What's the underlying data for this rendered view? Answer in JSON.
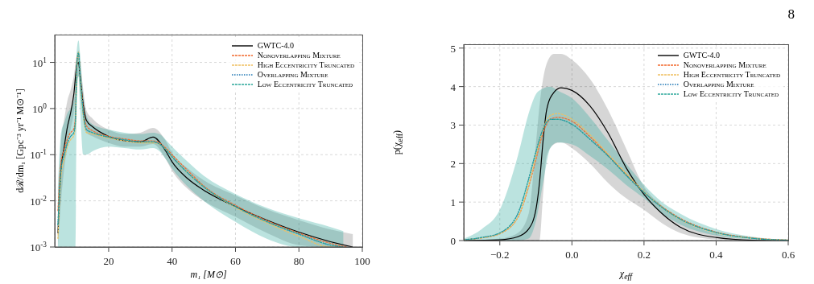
{
  "chart_data": [
    {
      "type": "line",
      "xlabel": "m₁ [M⊙]",
      "ylabel": "dℛ/dm₁ [Gpc⁻³ yr⁻¹ M⊙⁻¹]",
      "log": "y",
      "xlim": [
        3,
        100
      ],
      "xticks": [
        20,
        40,
        60,
        80,
        100
      ],
      "ylim": [
        0.001,
        40
      ],
      "yticks": [
        {
          "value": 0.001,
          "label": "10$^{-3}$"
        },
        {
          "value": 0.01,
          "label": "10$^{-2}$"
        },
        {
          "value": 0.1,
          "label": "10$^{-1}$"
        },
        {
          "value": 1,
          "label": "10$^{0}$"
        },
        {
          "value": 10,
          "label": "10$^{1}$"
        }
      ],
      "grid": true,
      "legend": "top right",
      "series": [
        {
          "name": "GWTC-4.0",
          "color": "#000000",
          "line_style": "solid",
          "x": [
            4,
            5,
            6,
            7,
            8,
            9,
            10,
            10.5,
            11,
            12,
            13,
            15,
            20,
            25,
            30,
            34,
            38,
            40,
            45,
            50,
            60,
            70,
            80,
            90,
            97
          ],
          "values": [
            0.002,
            0.05,
            0.15,
            0.4,
            0.8,
            2,
            9,
            10,
            5,
            1.2,
            0.55,
            0.4,
            0.25,
            0.2,
            0.19,
            0.24,
            0.12,
            0.07,
            0.03,
            0.017,
            0.0075,
            0.0038,
            0.0021,
            0.0013,
            0.001
          ],
          "lower": [
            0.001,
            0.01,
            0.05,
            0.15,
            0.35,
            0.8,
            4,
            5,
            2.5,
            0.6,
            0.3,
            0.25,
            0.18,
            0.15,
            0.15,
            0.17,
            0.08,
            0.045,
            0.018,
            0.01,
            0.0045,
            0.002,
            0.0011,
            0.001,
            0.001
          ],
          "upper": [
            0.01,
            0.2,
            0.6,
            1.5,
            2.5,
            5,
            15,
            18,
            10,
            2.5,
            0.9,
            0.6,
            0.35,
            0.28,
            0.3,
            0.38,
            0.2,
            0.11,
            0.05,
            0.028,
            0.013,
            0.0065,
            0.0038,
            0.0024,
            0.0019
          ]
        },
        {
          "name": "Nonoverlapping Mixture",
          "color": "#f26a2e",
          "line_style": "dashed",
          "x": [
            4,
            5,
            6,
            7,
            8,
            9,
            9.5,
            10,
            10.5,
            11,
            12,
            13,
            15,
            20,
            25,
            30,
            34,
            36,
            38,
            40,
            45,
            50,
            60,
            70,
            80,
            90,
            95
          ],
          "values": [
            0.006,
            0.07,
            0.13,
            0.22,
            0.3,
            0.36,
            0.65,
            12,
            15,
            6,
            1,
            0.42,
            0.33,
            0.25,
            0.22,
            0.2,
            0.2,
            0.18,
            0.14,
            0.1,
            0.045,
            0.021,
            0.008,
            0.0037,
            0.002,
            0.0012,
            0.001
          ]
        },
        {
          "name": "High Eccentricity Truncated",
          "color": "#f0c060",
          "line_style": "dashed",
          "x": [
            4,
            5,
            6,
            7,
            8,
            9,
            9.5,
            10,
            10.5,
            11,
            12,
            13,
            15,
            20,
            25,
            30,
            34,
            36,
            38,
            40,
            45,
            50,
            60,
            70,
            80,
            90,
            93
          ],
          "values": [
            0.0015,
            0.035,
            0.08,
            0.15,
            0.21,
            0.26,
            0.42,
            8,
            17,
            4.2,
            0.68,
            0.3,
            0.28,
            0.23,
            0.2,
            0.18,
            0.18,
            0.17,
            0.13,
            0.09,
            0.04,
            0.02,
            0.0072,
            0.0033,
            0.0017,
            0.001,
            0.001
          ]
        },
        {
          "name": "Overlapping Mixture",
          "color": "#1f77b4",
          "line_style": "dotted",
          "x": [
            4,
            5,
            6,
            7,
            8,
            9,
            9.5,
            10,
            10.5,
            11,
            12,
            13,
            15,
            20,
            25,
            30,
            34,
            36,
            38,
            40,
            45,
            50,
            60,
            70,
            80,
            90,
            94
          ],
          "values": [
            0.003,
            0.05,
            0.1,
            0.18,
            0.25,
            0.3,
            0.5,
            10,
            16,
            5,
            0.8,
            0.35,
            0.3,
            0.24,
            0.21,
            0.19,
            0.19,
            0.17,
            0.13,
            0.09,
            0.04,
            0.02,
            0.0075,
            0.0035,
            0.0019,
            0.0011,
            0.001
          ]
        },
        {
          "name": "Low Eccentricity Truncated",
          "color": "#2ca89a",
          "line_style": "dashed",
          "x": [
            4,
            5,
            6,
            7,
            8,
            9,
            9.5,
            10,
            10.5,
            11,
            12,
            13,
            15,
            20,
            25,
            30,
            34,
            36,
            38,
            40,
            45,
            50,
            60,
            70,
            80,
            90,
            94
          ],
          "values": [
            0.003,
            0.05,
            0.1,
            0.18,
            0.25,
            0.3,
            0.5,
            10,
            16,
            5,
            0.8,
            0.35,
            0.3,
            0.24,
            0.21,
            0.19,
            0.19,
            0.17,
            0.13,
            0.09,
            0.04,
            0.02,
            0.0075,
            0.0035,
            0.0019,
            0.0011,
            0.001
          ],
          "lower": [
            0.001,
            0.001,
            0.001,
            0.001,
            0.001,
            0.001,
            0.001,
            2,
            5,
            1,
            0.1,
            0.1,
            0.12,
            0.15,
            0.14,
            0.13,
            0.14,
            0.12,
            0.08,
            0.05,
            0.02,
            0.01,
            0.0035,
            0.0015,
            0.001,
            0.001,
            0.001
          ],
          "upper": [
            0.02,
            0.3,
            0.5,
            0.8,
            1,
            1.5,
            3,
            20,
            30,
            15,
            2,
            0.7,
            0.45,
            0.35,
            0.3,
            0.28,
            0.3,
            0.28,
            0.21,
            0.15,
            0.07,
            0.035,
            0.014,
            0.007,
            0.0042,
            0.0027,
            0.0022
          ]
        }
      ]
    },
    {
      "type": "line",
      "xlabel": "χ$_{eff}$",
      "ylabel": "p(χ$_{eff}$)",
      "annotations": [
        "8"
      ],
      "xlim": [
        -0.3,
        0.6
      ],
      "xticks": [
        {
          "value": -0.2,
          "label": "−0.2"
        },
        {
          "value": 0,
          "label": "0.0"
        },
        {
          "value": 0.2,
          "label": "0.2"
        },
        {
          "value": 0.4,
          "label": "0.4"
        },
        {
          "value": 0.6,
          "label": "0.6"
        }
      ],
      "ylim": [
        0,
        5.1
      ],
      "yticks": [
        0,
        1,
        2,
        3,
        4,
        5
      ],
      "grid": true,
      "legend": "top right",
      "series": [
        {
          "name": "GWTC-4.0",
          "color": "#000000",
          "line_style": "solid",
          "x": [
            -0.3,
            -0.2,
            -0.15,
            -0.12,
            -0.1,
            -0.09,
            -0.08,
            -0.07,
            -0.05,
            -0.03,
            0,
            0.05,
            0.1,
            0.15,
            0.2,
            0.25,
            0.3,
            0.4,
            0.5,
            0.6
          ],
          "values": [
            0,
            0.02,
            0.1,
            0.3,
            0.8,
            1.5,
            2.6,
            3.4,
            3.85,
            3.97,
            3.9,
            3.5,
            2.8,
            1.9,
            1.2,
            0.7,
            0.35,
            0.08,
            0.01,
            0
          ],
          "lower": [
            0,
            0,
            0,
            0,
            0,
            0,
            1.2,
            2.2,
            2.5,
            2.55,
            2.4,
            2,
            1.5,
            1.1,
            0.8,
            0.45,
            0.2,
            0.03,
            0,
            0
          ],
          "upper": [
            0,
            0.05,
            0.2,
            0.7,
            2.5,
            3.5,
            4.2,
            4.6,
            4.85,
            4.85,
            4.7,
            4.2,
            3.4,
            2.4,
            1.4,
            0.9,
            0.55,
            0.18,
            0.04,
            0.01
          ]
        },
        {
          "name": "Nonoverlapping Mixture",
          "color": "#f26a2e",
          "line_style": "dashed",
          "x": [
            -0.3,
            -0.25,
            -0.2,
            -0.15,
            -0.12,
            -0.1,
            -0.08,
            -0.06,
            -0.04,
            0,
            0.05,
            0.1,
            0.15,
            0.2,
            0.25,
            0.3,
            0.4,
            0.5,
            0.6
          ],
          "values": [
            0.02,
            0.07,
            0.18,
            0.6,
            1.4,
            2.1,
            2.8,
            3.15,
            3.2,
            3.1,
            2.7,
            2.22,
            1.72,
            1.25,
            0.88,
            0.58,
            0.22,
            0.07,
            0.012
          ]
        },
        {
          "name": "High Eccentricity Truncated",
          "color": "#f0c060",
          "line_style": "dashed",
          "x": [
            -0.3,
            -0.25,
            -0.2,
            -0.15,
            -0.12,
            -0.1,
            -0.08,
            -0.06,
            -0.04,
            0,
            0.05,
            0.1,
            0.15,
            0.2,
            0.25,
            0.3,
            0.4,
            0.5,
            0.6
          ],
          "values": [
            0.02,
            0.07,
            0.18,
            0.6,
            1.45,
            2.2,
            2.9,
            3.25,
            3.3,
            3.15,
            2.75,
            2.25,
            1.75,
            1.27,
            0.86,
            0.55,
            0.2,
            0.06,
            0.01
          ]
        },
        {
          "name": "Overlapping Mixture",
          "color": "#1f77b4",
          "line_style": "dotted",
          "x": [
            -0.3,
            -0.25,
            -0.2,
            -0.15,
            -0.12,
            -0.1,
            -0.08,
            -0.06,
            -0.04,
            0,
            0.05,
            0.1,
            0.15,
            0.2,
            0.25,
            0.3,
            0.4,
            0.5,
            0.6
          ],
          "values": [
            0.02,
            0.08,
            0.2,
            0.7,
            1.6,
            2.3,
            2.9,
            3.15,
            3.15,
            3.02,
            2.63,
            2.2,
            1.7,
            1.25,
            0.86,
            0.56,
            0.21,
            0.06,
            0.01
          ]
        },
        {
          "name": "Low Eccentricity Truncated",
          "color": "#2ca89a",
          "line_style": "dashed",
          "x": [
            -0.3,
            -0.25,
            -0.2,
            -0.15,
            -0.12,
            -0.1,
            -0.08,
            -0.06,
            -0.04,
            0,
            0.05,
            0.1,
            0.15,
            0.2,
            0.25,
            0.3,
            0.4,
            0.5,
            0.6
          ],
          "values": [
            0.02,
            0.08,
            0.2,
            0.7,
            1.6,
            2.3,
            2.9,
            3.15,
            3.15,
            3.02,
            2.63,
            2.2,
            1.7,
            1.25,
            0.86,
            0.56,
            0.21,
            0.06,
            0.01
          ],
          "lower": [
            0,
            0,
            0,
            0,
            0.05,
            0.5,
            1.5,
            2.4,
            2.55,
            2.5,
            2.2,
            1.85,
            1.45,
            1.1,
            0.7,
            0.42,
            0.13,
            0.03,
            0
          ],
          "upper": [
            0.05,
            0.3,
            0.8,
            2.2,
            3.3,
            3.8,
            3.95,
            4,
            3.9,
            3.7,
            3.2,
            2.6,
            2,
            1.45,
            1,
            0.7,
            0.3,
            0.1,
            0.02
          ]
        }
      ]
    }
  ]
}
